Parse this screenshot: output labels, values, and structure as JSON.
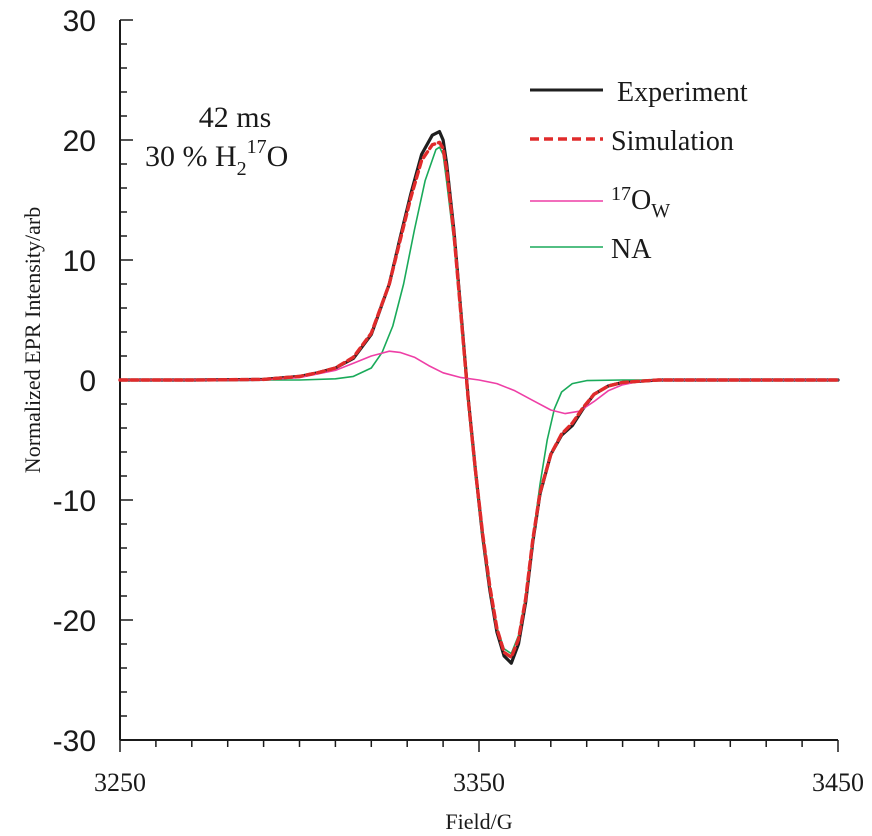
{
  "chart_data": {
    "type": "line",
    "xlabel": "Field/G",
    "ylabel": "Normalized EPR Intensity/arb",
    "xlim": [
      3250,
      3450
    ],
    "ylim": [
      -30,
      30
    ],
    "x_ticks": [
      "3250",
      "3350",
      "3450"
    ],
    "y_ticks": [
      "30",
      "20",
      "10",
      "0",
      "-10",
      "-20",
      "-30"
    ],
    "grid": false,
    "legend_position": "top-right",
    "annotation": {
      "line1": "42 ms",
      "line2_prefix": "30 % H",
      "line2_sub": "2",
      "line2_sup": "17",
      "line2_suffix": "O"
    },
    "legend": [
      {
        "key": "experiment",
        "text": "Experiment"
      },
      {
        "key": "simulation",
        "text": "Simulation"
      },
      {
        "key": "o17",
        "sup": "17",
        "text": "O",
        "sub": "W"
      },
      {
        "key": "na",
        "text": "NA"
      }
    ],
    "series": [
      {
        "key": "experiment",
        "name": "Experiment",
        "color": "#1f1f1f",
        "style": "solid",
        "x": [
          3250,
          3270,
          3290,
          3300,
          3305,
          3310,
          3315,
          3320,
          3325,
          3328,
          3331,
          3334,
          3337,
          3339,
          3340,
          3341,
          3343,
          3345,
          3347,
          3349,
          3351,
          3353,
          3355,
          3357,
          3359,
          3361,
          3363,
          3365,
          3367,
          3370,
          3373,
          3376,
          3379,
          3382,
          3386,
          3390,
          3400,
          3420,
          3450
        ],
        "y": [
          0,
          0,
          0.05,
          0.3,
          0.6,
          1.0,
          1.8,
          3.8,
          8.0,
          11.8,
          15.5,
          18.8,
          20.4,
          20.7,
          20.0,
          18.0,
          12.5,
          5.5,
          -1.5,
          -7.5,
          -13.0,
          -17.5,
          -21.0,
          -23.0,
          -23.6,
          -22.0,
          -18.5,
          -13.5,
          -9.5,
          -6.2,
          -4.6,
          -3.8,
          -2.4,
          -1.2,
          -0.5,
          -0.2,
          0,
          0,
          0
        ]
      },
      {
        "key": "simulation",
        "name": "Simulation",
        "color": "#e02b2b",
        "style": "dashed",
        "x": [
          3250,
          3270,
          3290,
          3300,
          3305,
          3310,
          3315,
          3320,
          3325,
          3328,
          3331,
          3334,
          3337,
          3339,
          3340,
          3341,
          3343,
          3345,
          3347,
          3349,
          3351,
          3353,
          3355,
          3357,
          3359,
          3361,
          3363,
          3365,
          3367,
          3370,
          3373,
          3376,
          3379,
          3382,
          3386,
          3390,
          3400,
          3420,
          3450
        ],
        "y": [
          0,
          0,
          0.05,
          0.3,
          0.6,
          1.0,
          1.9,
          3.9,
          8.0,
          11.6,
          15.2,
          18.3,
          19.6,
          19.8,
          19.3,
          17.5,
          12.2,
          5.3,
          -1.6,
          -7.5,
          -12.8,
          -17.2,
          -20.7,
          -22.7,
          -23.1,
          -21.6,
          -18.2,
          -13.3,
          -9.4,
          -6.2,
          -4.5,
          -3.6,
          -2.3,
          -1.2,
          -0.5,
          -0.2,
          0,
          0,
          0
        ]
      },
      {
        "key": "o17",
        "name": "17O_W",
        "color": "#ee3fa6",
        "style": "solid",
        "x": [
          3250,
          3290,
          3300,
          3310,
          3315,
          3320,
          3325,
          3328,
          3332,
          3336,
          3340,
          3345,
          3350,
          3355,
          3360,
          3365,
          3370,
          3374,
          3378,
          3382,
          3386,
          3390,
          3395,
          3400,
          3420,
          3450
        ],
        "y": [
          0,
          0.02,
          0.2,
          0.8,
          1.4,
          2.0,
          2.4,
          2.3,
          1.9,
          1.2,
          0.6,
          0.2,
          0,
          -0.3,
          -0.9,
          -1.7,
          -2.5,
          -2.8,
          -2.6,
          -1.8,
          -0.9,
          -0.4,
          -0.1,
          0,
          0,
          0
        ]
      },
      {
        "key": "na",
        "name": "NA",
        "color": "#1aaa5a",
        "style": "solid",
        "x": [
          3250,
          3300,
          3310,
          3315,
          3320,
          3323,
          3326,
          3329,
          3332,
          3335,
          3338,
          3339,
          3340,
          3341,
          3343,
          3345,
          3347,
          3349,
          3351,
          3353,
          3355,
          3357,
          3359,
          3361,
          3363,
          3365,
          3367,
          3369,
          3371,
          3373,
          3376,
          3380,
          3390,
          3450
        ],
        "y": [
          0,
          0,
          0.1,
          0.3,
          1.0,
          2.3,
          4.5,
          8.0,
          12.5,
          16.6,
          19.2,
          19.4,
          18.8,
          16.5,
          11.5,
          5.0,
          -1.8,
          -7.8,
          -13.2,
          -17.4,
          -20.6,
          -22.4,
          -22.8,
          -21.3,
          -18.0,
          -13.2,
          -8.7,
          -5.0,
          -2.4,
          -1.0,
          -0.3,
          -0.05,
          0,
          0
        ]
      }
    ]
  }
}
